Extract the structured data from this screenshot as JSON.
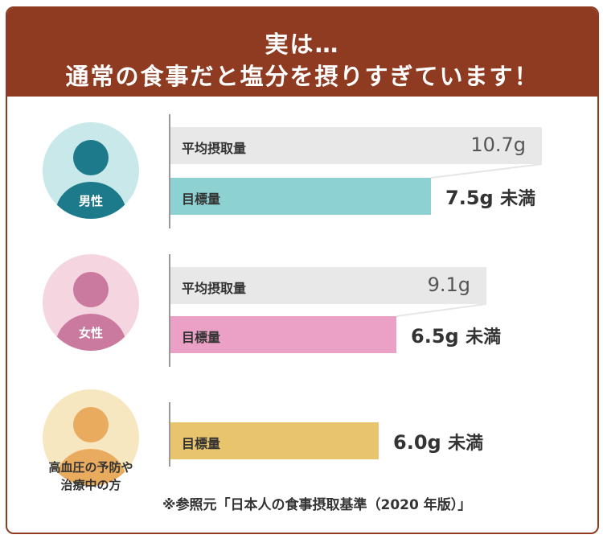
{
  "header": {
    "line1": "実は…",
    "line2": "通常の食事だと塩分を摂りすぎています！",
    "color": "#8f3b22"
  },
  "groups": [
    {
      "label": "男性",
      "avatar_bg": "#c8e8e9",
      "avatar_fg": "#1d7a8b",
      "bars": [
        {
          "label": "平均摂取量",
          "value_text": "10.7g",
          "color": "#e8e8e8"
        },
        {
          "label": "目標量",
          "value_text": "7.5g",
          "suffix": "未満",
          "color": "#8ed1d2"
        }
      ]
    },
    {
      "label": "女性",
      "avatar_bg": "#f5d5e0",
      "avatar_fg": "#c97a9e",
      "bars": [
        {
          "label": "平均摂取量",
          "value_text": "9.1g",
          "color": "#e8e8e8"
        },
        {
          "label": "目標量",
          "value_text": "6.5g",
          "suffix": "未満",
          "color": "#eba1c6"
        }
      ]
    },
    {
      "label": "高血圧の予防や治療中の方",
      "label_lines": [
        "高血圧の予防や",
        "治療中の方"
      ],
      "avatar_bg": "#f7e7c1",
      "avatar_fg": "#e9ab5e",
      "bars": [
        {
          "label": "目標量",
          "value_text": "6.0g",
          "suffix": "未満",
          "color": "#e8c46c"
        }
      ]
    }
  ],
  "chart_data": {
    "type": "bar",
    "orientation": "horizontal",
    "categories": [
      "男性",
      "女性",
      "高血圧の予防や治療中の方"
    ],
    "series": [
      {
        "name": "平均摂取量",
        "values": [
          10.7,
          9.1,
          null
        ]
      },
      {
        "name": "目標量",
        "values": [
          7.5,
          6.5,
          6.0
        ]
      }
    ],
    "unit": "g"
  },
  "footnote": "※参照元「日本人の食事摂取基準（2020 年版）」"
}
